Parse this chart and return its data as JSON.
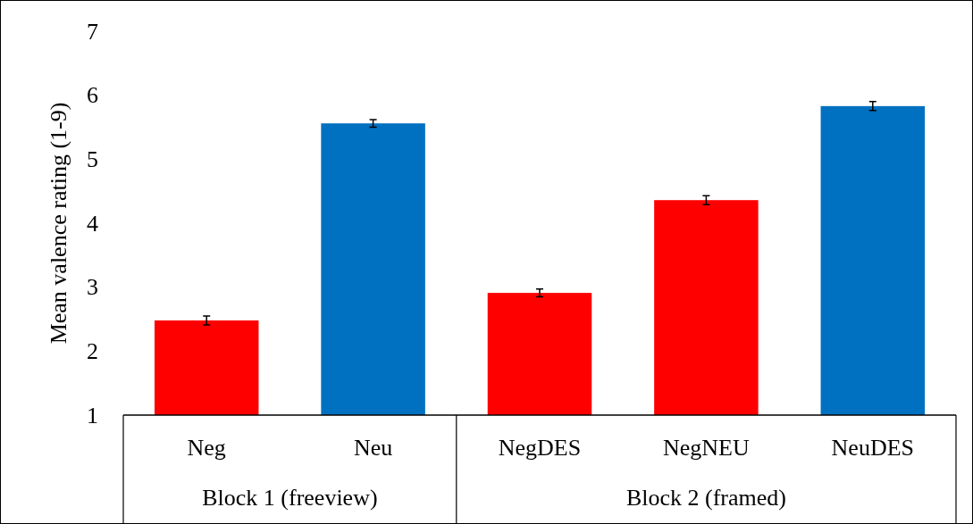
{
  "chart_data": {
    "type": "bar",
    "ylabel": "Mean valence rating (1-9)",
    "categories": [
      "Neg",
      "Neu",
      "NegDES",
      "NegNEU",
      "NeuDES"
    ],
    "values": [
      2.48,
      5.56,
      2.91,
      4.36,
      5.83
    ],
    "colors": [
      "#ff0000",
      "#0070c0",
      "#ff0000",
      "#ff0000",
      "#0070c0"
    ],
    "errors": [
      0.07,
      0.06,
      0.06,
      0.07,
      0.07
    ],
    "ylim": [
      1,
      7
    ],
    "yticks": [
      1,
      2,
      3,
      4,
      5,
      6,
      7
    ],
    "grid": false,
    "annotations": [
      "Block 1 (freeview)",
      "Block 2 (framed)"
    ]
  }
}
